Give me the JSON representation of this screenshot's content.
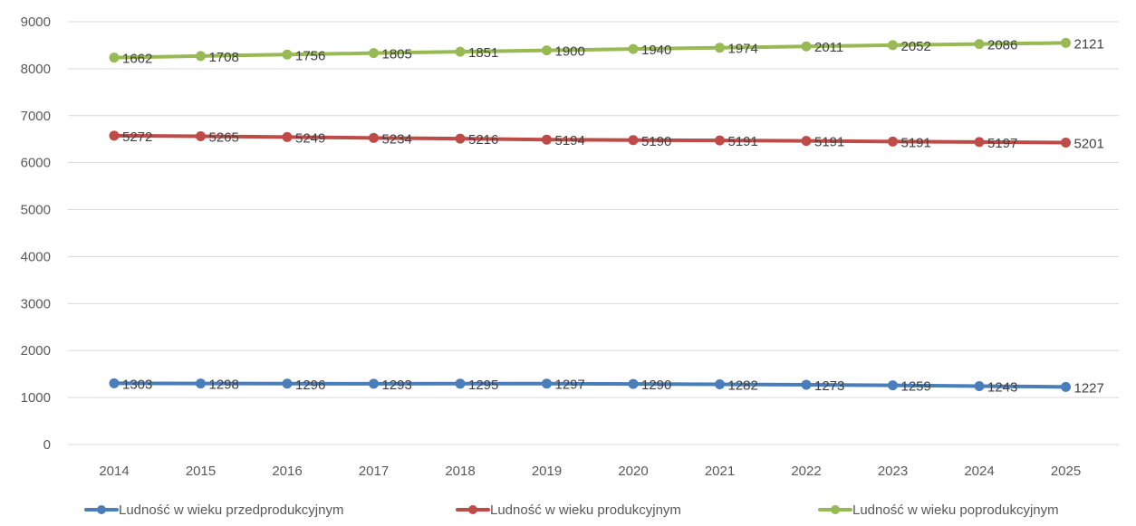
{
  "chart_data": {
    "type": "line",
    "title": "",
    "xlabel": "",
    "ylabel": "",
    "categories": [
      "2014",
      "2015",
      "2016",
      "2017",
      "2018",
      "2019",
      "2020",
      "2021",
      "2022",
      "2023",
      "2024",
      "2025"
    ],
    "ylim": [
      0,
      9000
    ],
    "yticks": [
      0,
      1000,
      2000,
      3000,
      4000,
      5000,
      6000,
      7000,
      8000,
      9000
    ],
    "grid": true,
    "stacked": true,
    "legend_position": "bottom",
    "series": [
      {
        "name": "Ludność w wieku przedprodukcyjnym",
        "color": "#4a7ebb",
        "values": [
          1303,
          1298,
          1296,
          1293,
          1295,
          1297,
          1290,
          1282,
          1273,
          1259,
          1243,
          1227
        ]
      },
      {
        "name": "Ludność w wieku produkcyjnym",
        "color": "#be4b48",
        "values": [
          5272,
          5265,
          5249,
          5234,
          5216,
          5194,
          5190,
          5191,
          5191,
          5191,
          5197,
          5201
        ]
      },
      {
        "name": "Ludność w wieku poprodukcyjnym",
        "color": "#98b954",
        "values": [
          1662,
          1708,
          1756,
          1805,
          1851,
          1900,
          1940,
          1974,
          2011,
          2052,
          2086,
          2121
        ]
      }
    ]
  }
}
